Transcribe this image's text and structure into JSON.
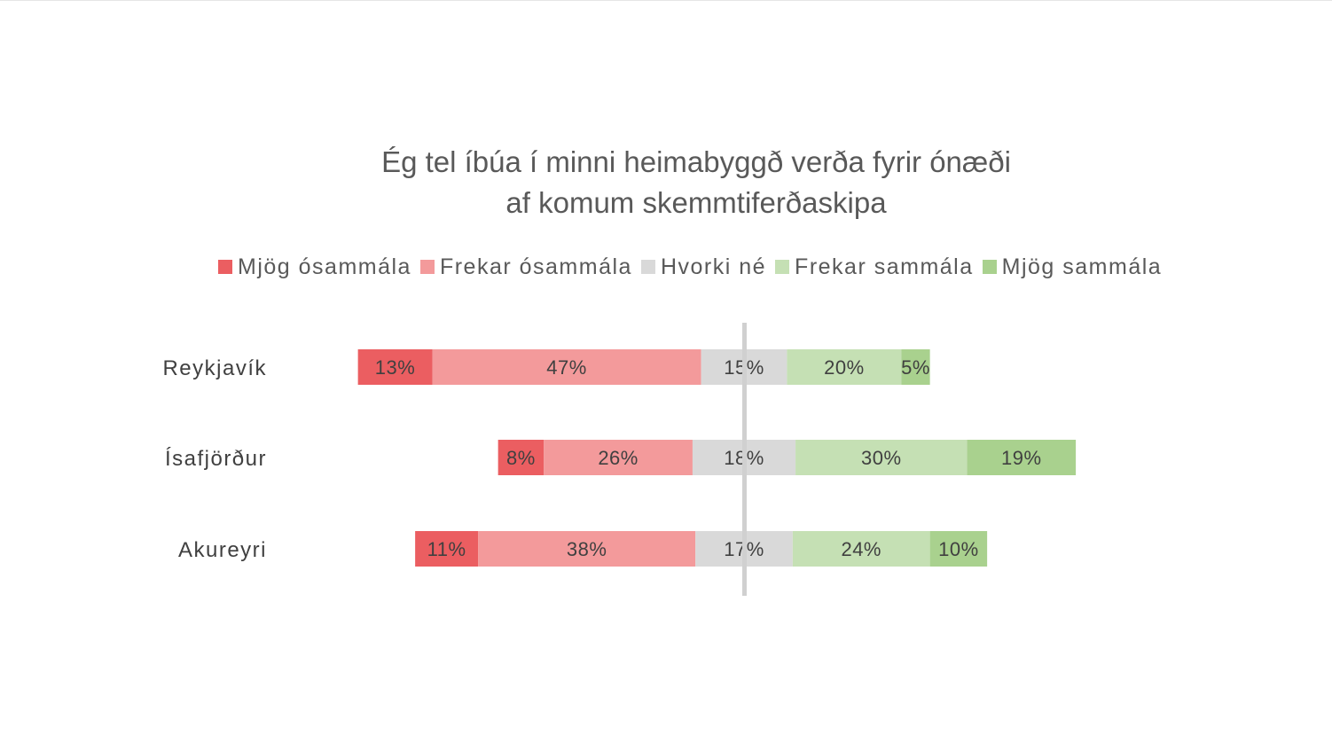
{
  "chart_data": {
    "type": "bar",
    "orientation": "horizontal",
    "stacked": true,
    "diverging": true,
    "title": "Ég tel íbúa í minni heimabyggð verða fyrir ónæði af komum skemmtiferðaskipa",
    "title_lines": [
      "Ég tel íbúa í minni heimabyggð verða fyrir ónæði",
      "af komum skemmtiferðaskipa"
    ],
    "xlabel": "",
    "ylabel": "",
    "legend_position": "top",
    "grid": false,
    "categories": [
      "Reykjavík",
      "Ísafjörður",
      "Akureyri"
    ],
    "series": [
      {
        "name": "Mjög ósammála",
        "color": "#eb5e61",
        "values": [
          13,
          8,
          11
        ],
        "labels": [
          "13%",
          "8%",
          "11%"
        ]
      },
      {
        "name": "Frekar ósammála",
        "color": "#f39a9b",
        "values": [
          47,
          26,
          38
        ],
        "labels": [
          "47%",
          "26%",
          "38%"
        ]
      },
      {
        "name": "Hvorki né",
        "color": "#d9d9d9",
        "values": [
          15,
          18,
          17
        ],
        "labels": [
          "15%",
          "18%",
          "17%"
        ]
      },
      {
        "name": "Frekar sammála",
        "color": "#c5e0b4",
        "values": [
          20,
          30,
          24
        ],
        "labels": [
          "20%",
          "30%",
          "24%"
        ]
      },
      {
        "name": "Mjög sammála",
        "color": "#a9d18e",
        "values": [
          5,
          19,
          10
        ],
        "labels": [
          "5%",
          "19%",
          "10%"
        ]
      }
    ],
    "neutral_series_index": 2,
    "center_line_color": "#d0d0d0"
  }
}
